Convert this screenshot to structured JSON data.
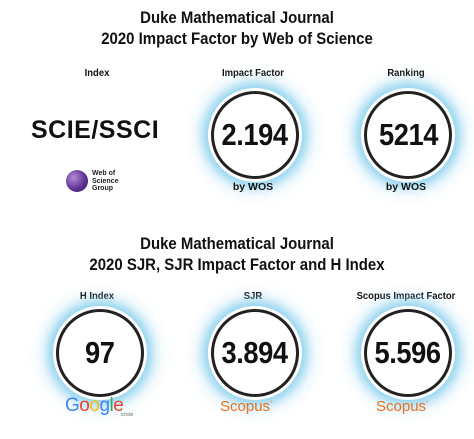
{
  "section1": {
    "title_line1": "Duke Mathematical Journal",
    "title_line2": "2020 Impact Factor by Web of Science",
    "index_label": "Index",
    "index_value": "SCIE/SSCI",
    "wos_logo_lines": [
      "Web of",
      "Science",
      "Group"
    ],
    "impact_label": "Impact Factor",
    "impact_value": "2.194",
    "impact_source": "by WOS",
    "ranking_label": "Ranking",
    "ranking_value": "5214",
    "ranking_source": "by WOS"
  },
  "section2": {
    "title_line1": "Duke Mathematical Journal",
    "title_line2": "2020 SJR, SJR Impact Factor and H Index",
    "h_label": "H Index",
    "h_value": "97",
    "google_logo": "Google",
    "google_scholar": "scholar",
    "sjr_label": "SJR",
    "sjr_value": "3.894",
    "scopus_logo": "Scopus",
    "scopus_if_label": "Scopus Impact Factor",
    "scopus_if_value": "5.596",
    "scopus_logo_2": "Scopus"
  },
  "colors": {
    "ring_glow": "#8fd3ee",
    "scopus_orange": "#e9711c",
    "wos_purple": "#5a2d91"
  }
}
